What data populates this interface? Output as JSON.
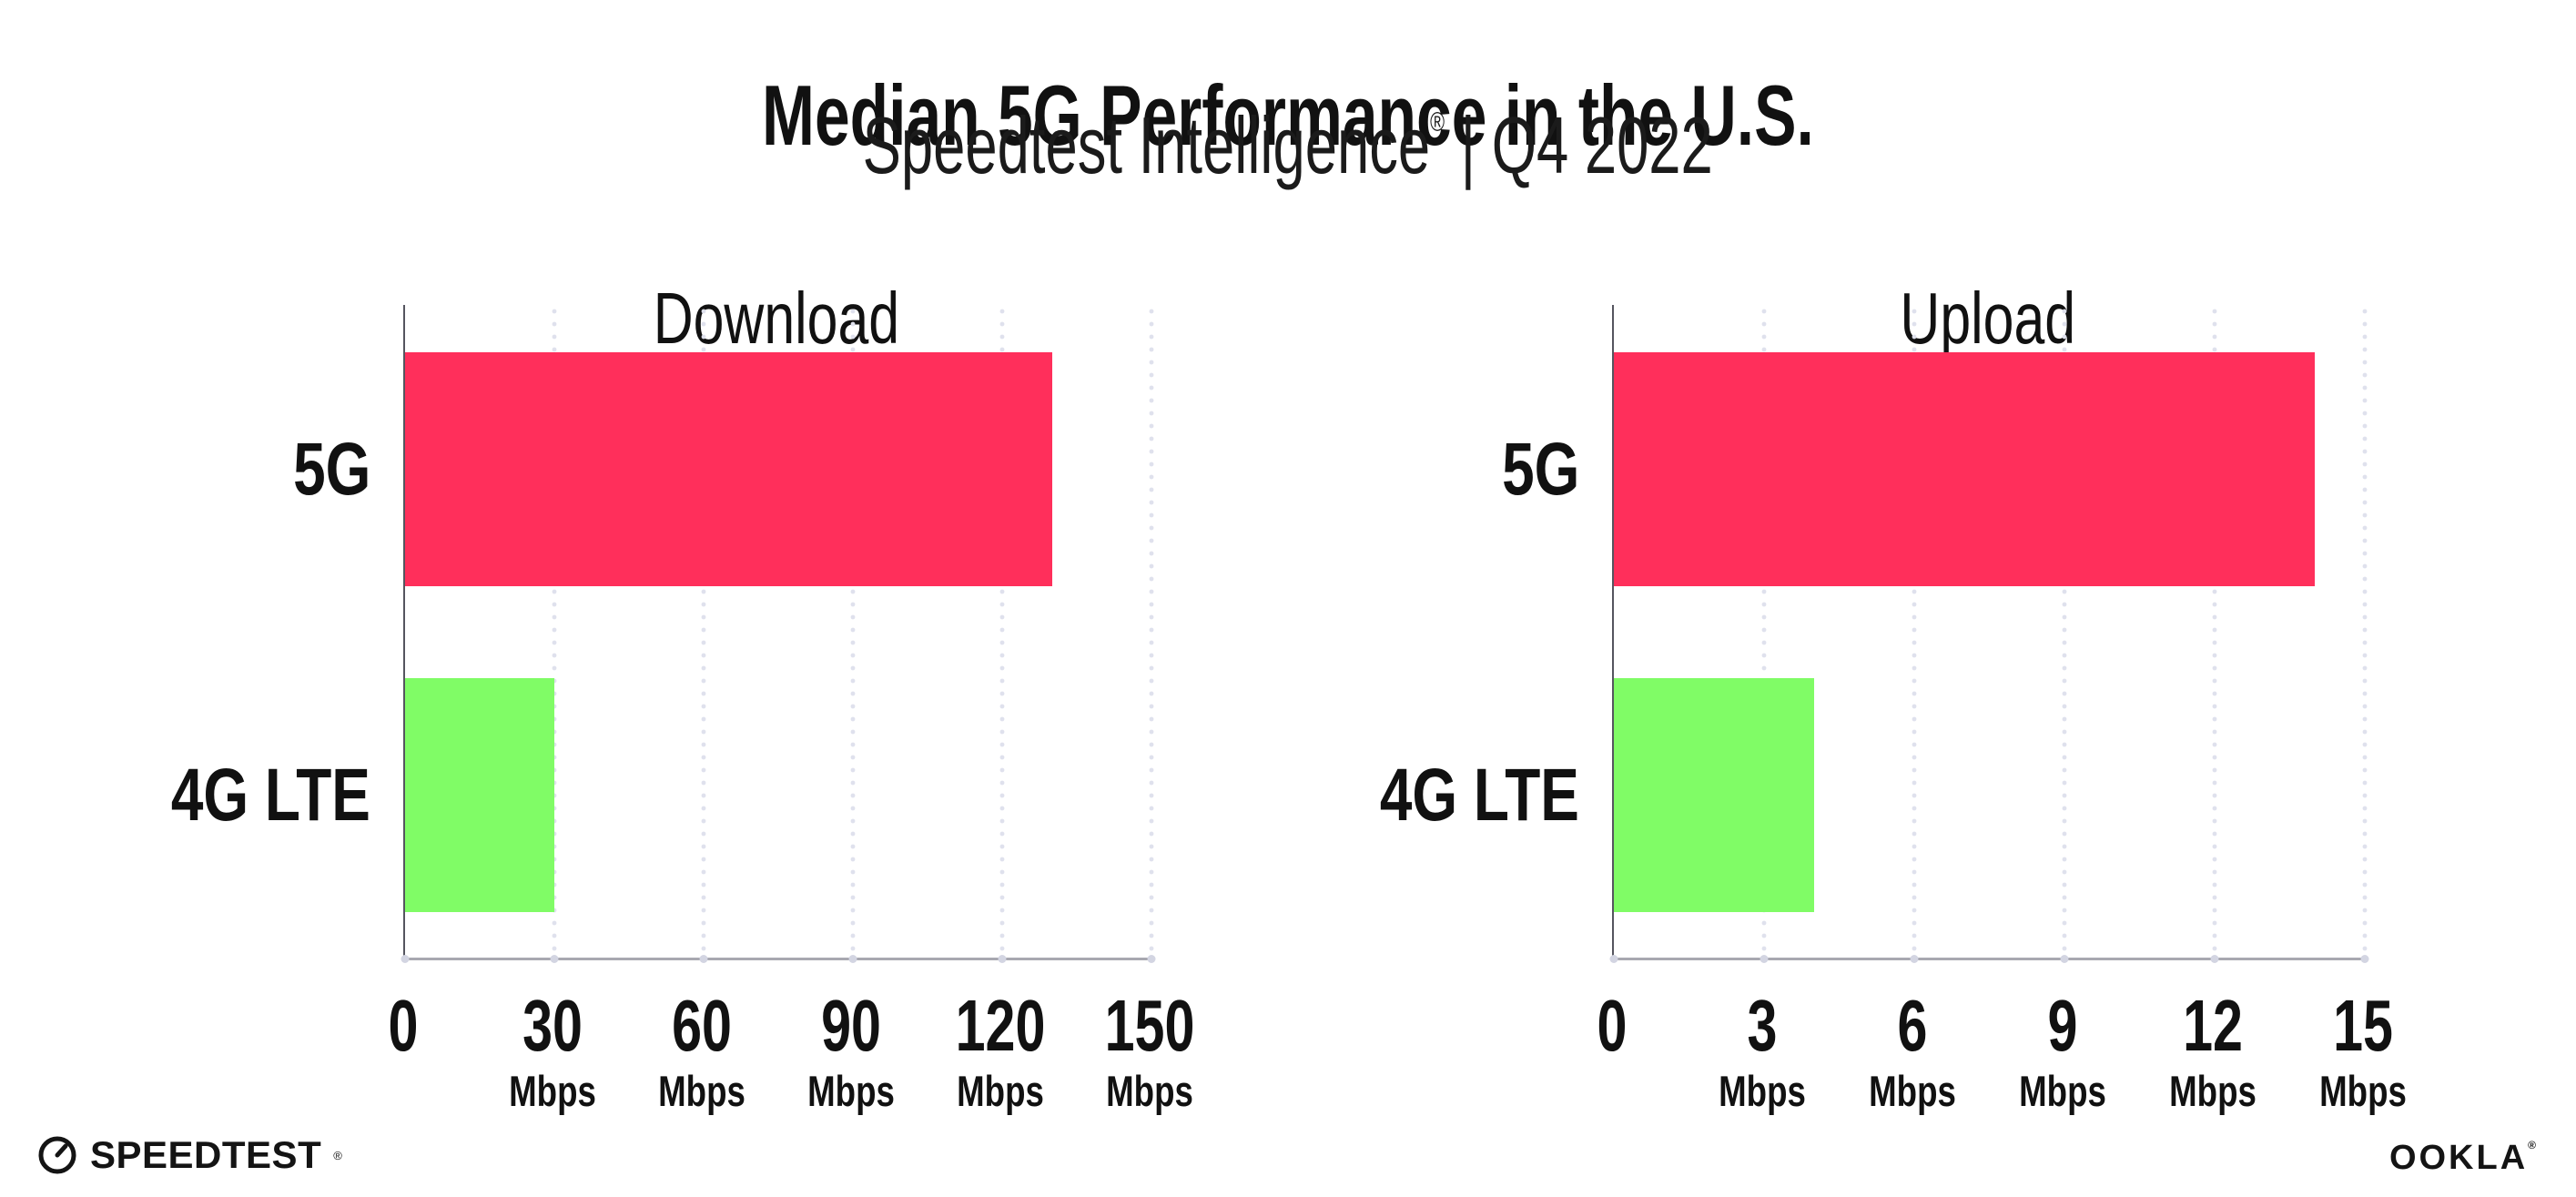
{
  "header": {
    "title": "Median 5G Performance in the U.S.",
    "subtitle_brand": "Speedtest Intelligence",
    "subtitle_reg": "®",
    "subtitle_rest": " | Q4 2022"
  },
  "chart_data": [
    {
      "type": "bar",
      "orientation": "horizontal",
      "title": "Download",
      "categories": [
        "5G",
        "4G LTE"
      ],
      "values": [
        130,
        30
      ],
      "unit": "Mbps",
      "xlim": [
        0,
        150
      ],
      "xticks": [
        0,
        30,
        60,
        90,
        120,
        150
      ],
      "series_colors": [
        "#FF2F5B",
        "#80FC66"
      ],
      "grid": "dotted-vertical-lines",
      "legend": "none"
    },
    {
      "type": "bar",
      "orientation": "horizontal",
      "title": "Upload",
      "categories": [
        "5G",
        "4G LTE"
      ],
      "values": [
        14,
        4
      ],
      "unit": "Mbps",
      "xlim": [
        0,
        15
      ],
      "xticks": [
        0,
        3,
        6,
        9,
        12,
        15
      ],
      "series_colors": [
        "#FF2F5B",
        "#80FC66"
      ],
      "grid": "dotted-vertical-lines",
      "legend": "none"
    }
  ],
  "footer": {
    "speedtest_label": "SPEEDTEST",
    "speedtest_reg": "®",
    "ookla_label": "OOKLA",
    "ookla_reg": "®"
  },
  "colors": {
    "bar_5g": "#FF2F5B",
    "bar_4g_lte": "#80FC66",
    "grid_dot": "#DFE1ED",
    "x_axis_line": "#A8A8B0",
    "y_axis_line": "#55555F",
    "text": "#111111"
  }
}
